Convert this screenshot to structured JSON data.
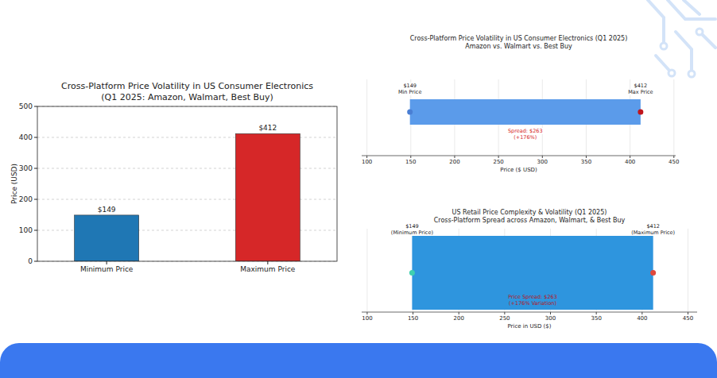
{
  "chart_data": [
    {
      "type": "bar",
      "title": "Cross-Platform Price Volatility in US Consumer Electronics",
      "subtitle": "(Q1 2025: Amazon, Walmart, Best Buy)",
      "categories": [
        "Minimum Price",
        "Maximum Price"
      ],
      "values": [
        149,
        412
      ],
      "value_labels": [
        "$149",
        "$412"
      ],
      "colors": [
        "#1f77b4",
        "#d62728"
      ],
      "ylabel": "Price (USD)",
      "ylim": [
        0,
        500
      ],
      "yticks": [
        0,
        100,
        200,
        300,
        400,
        500
      ],
      "grid": true,
      "data_labels": true
    },
    {
      "type": "range",
      "orientation": "horizontal",
      "title": "Cross-Platform Price Volatility in US Consumer Electronics (Q1 2025)",
      "subtitle": "Amazon vs. Walmart vs. Best Buy",
      "values": [
        149,
        412
      ],
      "value_labels": [
        "$149",
        "$412"
      ],
      "point_labels": [
        "Min Price",
        "Max Price"
      ],
      "color": "#5b9bea",
      "colors": [
        "#4a7fd4",
        "#c0161d"
      ],
      "annotation": [
        "Spread: $263",
        "(+176%)"
      ],
      "xlabel": "Price ($ USD)",
      "xlim": [
        94,
        452
      ],
      "xticks": [
        100,
        150,
        200,
        250,
        300,
        350,
        400,
        450
      ],
      "grid": true
    },
    {
      "type": "range",
      "orientation": "horizontal",
      "title": "US Retail Price Complexity & Volatility (Q1 2025)",
      "subtitle": "Cross-Platform Spread across Amazon, Walmart, & Best Buy",
      "values": [
        149,
        412
      ],
      "value_labels": [
        "$149",
        "$412"
      ],
      "point_labels": [
        "(Minimum Price)",
        "(Maximum Price)"
      ],
      "color": "#2e95de",
      "colors": [
        "#3fd0b0",
        "#e0483c"
      ],
      "annotation": [
        "Price Spread: $263",
        "(+176% Variation)"
      ],
      "xlabel": "Price in USD ($)",
      "xlim": [
        94,
        460
      ],
      "xticks": [
        100,
        150,
        200,
        250,
        300,
        350,
        400,
        450
      ],
      "grid": true
    }
  ]
}
